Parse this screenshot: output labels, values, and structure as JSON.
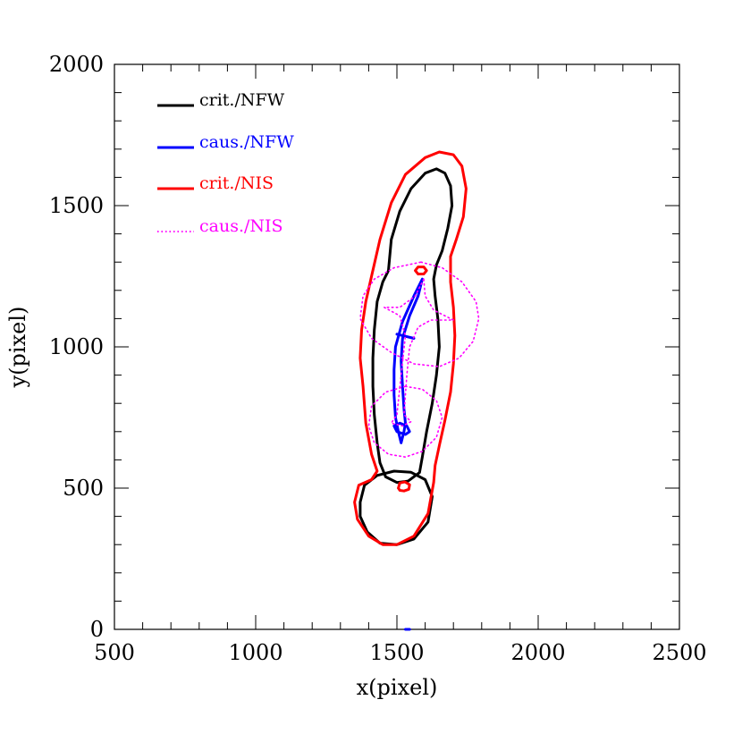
{
  "chart_data": {
    "type": "line",
    "xlabel": "x(pixel)",
    "ylabel": "y(pixel)",
    "xlim": [
      500,
      2500
    ],
    "ylim": [
      0,
      2000
    ],
    "xticks": [
      "500",
      "1000",
      "1500",
      "2000",
      "2500"
    ],
    "yticks": [
      "0",
      "500",
      "1000",
      "1500",
      "2000"
    ],
    "grid": false,
    "legend_position": "top-left",
    "series": [
      {
        "name": "crit./NFW",
        "color": "#000000",
        "style": "solid",
        "paths": [
          [
            [
              1470,
              1270
            ],
            [
              1480,
              1380
            ],
            [
              1510,
              1480
            ],
            [
              1550,
              1560
            ],
            [
              1600,
              1615
            ],
            [
              1640,
              1630
            ],
            [
              1670,
              1615
            ],
            [
              1690,
              1570
            ],
            [
              1695,
              1500
            ],
            [
              1680,
              1420
            ],
            [
              1660,
              1340
            ],
            [
              1640,
              1290
            ],
            [
              1630,
              1240
            ],
            [
              1635,
              1180
            ],
            [
              1645,
              1100
            ],
            [
              1650,
              1000
            ],
            [
              1640,
              900
            ],
            [
              1625,
              800
            ],
            [
              1605,
              700
            ],
            [
              1590,
              610
            ],
            [
              1580,
              555
            ],
            [
              1540,
              525
            ],
            [
              1500,
              520
            ],
            [
              1460,
              540
            ],
            [
              1440,
              590
            ],
            [
              1430,
              660
            ],
            [
              1420,
              760
            ],
            [
              1415,
              860
            ],
            [
              1415,
              960
            ],
            [
              1420,
              1060
            ],
            [
              1430,
              1160
            ],
            [
              1450,
              1230
            ],
            [
              1470,
              1270
            ]
          ],
          [
            [
              1370,
              450
            ],
            [
              1385,
              510
            ],
            [
              1430,
              545
            ],
            [
              1490,
              560
            ],
            [
              1550,
              556
            ],
            [
              1600,
              530
            ],
            [
              1625,
              470
            ],
            [
              1610,
              380
            ],
            [
              1560,
              320
            ],
            [
              1500,
              300
            ],
            [
              1440,
              305
            ],
            [
              1395,
              345
            ],
            [
              1370,
              400
            ],
            [
              1370,
              450
            ]
          ]
        ]
      },
      {
        "name": "caus./NFW",
        "color": "#0000ff",
        "style": "solid",
        "paths": [
          [
            [
              1590,
              1240
            ],
            [
              1575,
              1180
            ],
            [
              1545,
              1110
            ],
            [
              1520,
              1030
            ],
            [
              1515,
              950
            ],
            [
              1520,
              860
            ],
            [
              1525,
              780
            ],
            [
              1530,
              730
            ],
            [
              1525,
              700
            ],
            [
              1515,
              660
            ],
            [
              1505,
              700
            ],
            [
              1495,
              750
            ],
            [
              1490,
              830
            ],
            [
              1490,
              920
            ],
            [
              1495,
              1000
            ],
            [
              1520,
              1090
            ],
            [
              1560,
              1180
            ],
            [
              1590,
              1240
            ]
          ],
          [
            [
              1490,
              720
            ],
            [
              1510,
              730
            ],
            [
              1535,
              720
            ],
            [
              1545,
              700
            ],
            [
              1530,
              690
            ],
            [
              1500,
              700
            ],
            [
              1490,
              720
            ]
          ],
          [
            [
              1500,
              1045
            ],
            [
              1560,
              1030
            ]
          ],
          [
            [
              1530,
              0
            ],
            [
              1545,
              0
            ]
          ]
        ]
      },
      {
        "name": "crit./NIS",
        "color": "#ff0000",
        "style": "solid",
        "paths": [
          [
            [
              1410,
              1250
            ],
            [
              1440,
              1380
            ],
            [
              1480,
              1510
            ],
            [
              1530,
              1610
            ],
            [
              1600,
              1670
            ],
            [
              1650,
              1690
            ],
            [
              1700,
              1680
            ],
            [
              1730,
              1640
            ],
            [
              1745,
              1560
            ],
            [
              1735,
              1460
            ],
            [
              1710,
              1380
            ],
            [
              1690,
              1320
            ],
            [
              1690,
              1230
            ],
            [
              1700,
              1140
            ],
            [
              1705,
              1040
            ],
            [
              1700,
              940
            ],
            [
              1690,
              840
            ],
            [
              1670,
              740
            ],
            [
              1650,
              650
            ],
            [
              1635,
              580
            ],
            [
              1630,
              520
            ],
            [
              1610,
              410
            ],
            [
              1560,
              330
            ],
            [
              1500,
              300
            ],
            [
              1450,
              300
            ],
            [
              1400,
              330
            ],
            [
              1360,
              390
            ],
            [
              1350,
              450
            ],
            [
              1365,
              510
            ],
            [
              1410,
              530
            ],
            [
              1430,
              560
            ],
            [
              1410,
              620
            ],
            [
              1390,
              730
            ],
            [
              1380,
              860
            ],
            [
              1370,
              960
            ],
            [
              1375,
              1060
            ],
            [
              1390,
              1160
            ],
            [
              1410,
              1250
            ]
          ],
          [
            [
              1575,
              1258
            ],
            [
              1565,
              1270
            ],
            [
              1575,
              1283
            ],
            [
              1595,
              1283
            ],
            [
              1605,
              1270
            ],
            [
              1595,
              1258
            ],
            [
              1575,
              1258
            ]
          ],
          [
            [
              1505,
              500
            ],
            [
              1510,
              518
            ],
            [
              1528,
              522
            ],
            [
              1545,
              512
            ],
            [
              1542,
              496
            ],
            [
              1525,
              490
            ],
            [
              1510,
              492
            ],
            [
              1505,
              500
            ]
          ]
        ]
      },
      {
        "name": "caus./NIS",
        "color": "#ff00ff",
        "style": "dotted",
        "paths": [
          [
            [
              1595,
              1240
            ],
            [
              1565,
              1180
            ],
            [
              1510,
              1140
            ],
            [
              1455,
              1140
            ],
            [
              1510,
              1110
            ],
            [
              1530,
              1040
            ],
            [
              1515,
              900
            ],
            [
              1500,
              760
            ],
            [
              1480,
              730
            ],
            [
              1520,
              720
            ],
            [
              1550,
              735
            ],
            [
              1525,
              760
            ],
            [
              1535,
              900
            ],
            [
              1545,
              1000
            ],
            [
              1575,
              1070
            ],
            [
              1620,
              1095
            ],
            [
              1700,
              1095
            ],
            [
              1630,
              1130
            ],
            [
              1600,
              1180
            ],
            [
              1595,
              1240
            ]
          ],
          [
            [
              1585,
              1300
            ],
            [
              1660,
              1280
            ],
            [
              1730,
              1230
            ],
            [
              1780,
              1160
            ],
            [
              1790,
              1100
            ],
            [
              1770,
              1020
            ],
            [
              1720,
              960
            ],
            [
              1650,
              930
            ],
            [
              1560,
              940
            ],
            [
              1480,
              980
            ],
            [
              1410,
              1030
            ],
            [
              1370,
              1100
            ],
            [
              1380,
              1180
            ],
            [
              1420,
              1240
            ],
            [
              1490,
              1280
            ],
            [
              1585,
              1300
            ]
          ],
          [
            [
              1530,
              860
            ],
            [
              1590,
              850
            ],
            [
              1640,
              810
            ],
            [
              1660,
              750
            ],
            [
              1640,
              680
            ],
            [
              1590,
              630
            ],
            [
              1530,
              610
            ],
            [
              1470,
              620
            ],
            [
              1420,
              660
            ],
            [
              1400,
              720
            ],
            [
              1410,
              790
            ],
            [
              1460,
              840
            ],
            [
              1530,
              860
            ]
          ]
        ]
      }
    ]
  }
}
